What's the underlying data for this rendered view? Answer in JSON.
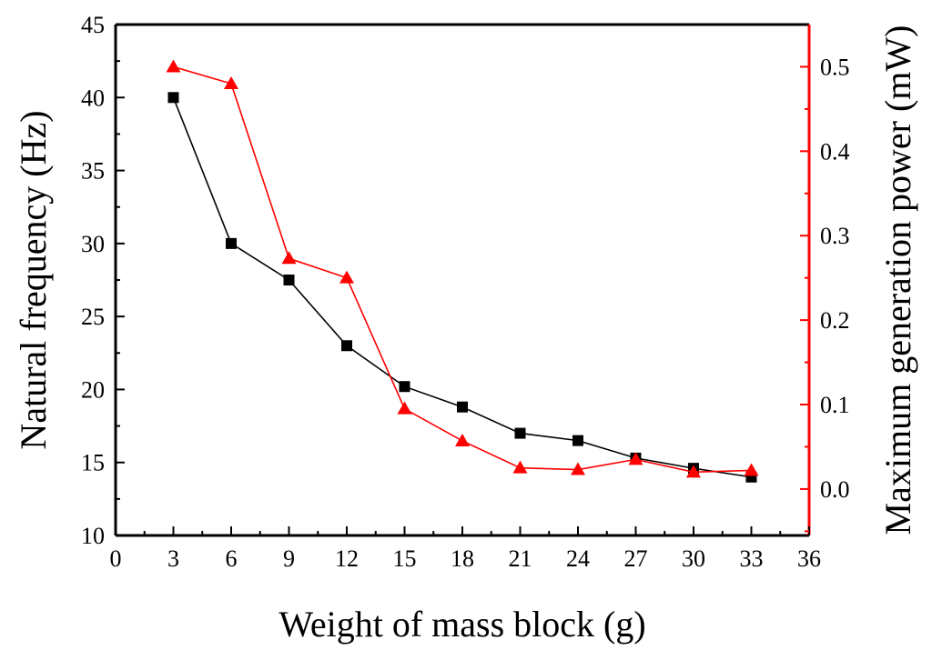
{
  "chart_data": {
    "type": "line",
    "xlabel": "Weight of mass block (g)",
    "ylabel_left": "Natural frequency (Hz)",
    "ylabel_right": "Maximum generation power (mW)",
    "xlim": [
      0,
      36
    ],
    "ylim_left": [
      10,
      45
    ],
    "ylim_right": [
      -0.055,
      0.55
    ],
    "x_ticks": [
      "0",
      "3",
      "6",
      "9",
      "12",
      "15",
      "18",
      "21",
      "24",
      "27",
      "30",
      "33",
      "36"
    ],
    "y_left_ticks": [
      "10",
      "15",
      "20",
      "25",
      "30",
      "35",
      "40",
      "45"
    ],
    "y_right_ticks": [
      "0.0",
      "0.1",
      "0.2",
      "0.3",
      "0.4",
      "0.5"
    ],
    "series": [
      {
        "name": "Natural frequency",
        "axis": "left",
        "marker": "square",
        "color": "#000000",
        "x": [
          3,
          6,
          9,
          12,
          15,
          18,
          21,
          24,
          27,
          30,
          33
        ],
        "y": [
          40,
          30,
          27.5,
          23,
          20.2,
          18.8,
          17,
          16.5,
          15.3,
          14.6,
          14
        ]
      },
      {
        "name": "Maximum generation power",
        "axis": "right",
        "marker": "triangle",
        "color": "#ff0000",
        "x": [
          3,
          6,
          9,
          12,
          15,
          18,
          21,
          24,
          27,
          30,
          33
        ],
        "y": [
          0.5,
          0.48,
          0.273,
          0.25,
          0.095,
          0.057,
          0.025,
          0.023,
          0.035,
          0.02,
          0.022
        ]
      }
    ]
  }
}
